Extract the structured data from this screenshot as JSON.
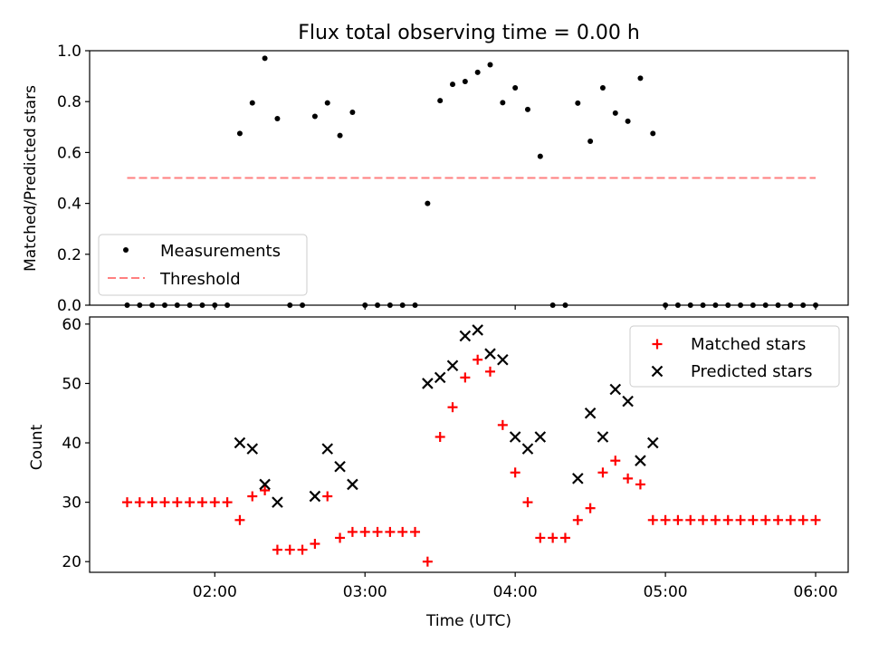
{
  "chart_data": [
    {
      "type": "scatter",
      "title": "Flux total observing time = 0.00 h",
      "xlabel": "",
      "ylabel": "Matched/Predicted stars",
      "xlim": [
        1.1667,
        6.2167
      ],
      "ylim": [
        0.0,
        1.0
      ],
      "yticks": [
        0.0,
        0.2,
        0.4,
        0.6,
        0.8,
        1.0
      ],
      "ytick_labels": [
        "0.0",
        "0.2",
        "0.4",
        "0.6",
        "0.8",
        "1.0"
      ],
      "legend_position": "bottom-left",
      "series": [
        {
          "name": "Measurements",
          "color": "#000000",
          "marker": "dot",
          "x": [
            1.4167,
            1.5,
            1.5833,
            1.6667,
            1.75,
            1.8333,
            1.9167,
            2.0,
            2.0833,
            2.1667,
            2.25,
            2.3333,
            2.4167,
            2.5,
            2.5833,
            2.6667,
            2.75,
            2.8333,
            2.9167,
            3.0,
            3.0833,
            3.1667,
            3.25,
            3.3333,
            3.4167,
            3.5,
            3.5833,
            3.6667,
            3.75,
            3.8333,
            3.9167,
            4.0,
            4.0833,
            4.1667,
            4.25,
            4.3333,
            4.4167,
            4.5,
            4.5833,
            4.6667,
            4.75,
            4.8333,
            4.9167,
            5.0,
            5.0833,
            5.1667,
            5.25,
            5.3333,
            5.4167,
            5.5,
            5.5833,
            5.6667,
            5.75,
            5.8333,
            5.9167,
            6.0
          ],
          "y": [
            0,
            0,
            0,
            0,
            0,
            0,
            0,
            0,
            0,
            0.675,
            0.795,
            0.97,
            0.733,
            0,
            0,
            0.742,
            0.795,
            0.667,
            0.758,
            0,
            0,
            0,
            0,
            0,
            0.4,
            0.804,
            0.868,
            0.879,
            0.915,
            0.945,
            0.796,
            0.854,
            0.769,
            0.585,
            0,
            0,
            0.794,
            0.644,
            0.854,
            0.755,
            0.723,
            0.892,
            0.675,
            0,
            0,
            0,
            0,
            0,
            0,
            0,
            0,
            0,
            0,
            0,
            0,
            0
          ]
        },
        {
          "name": "Threshold",
          "color": "#ff7f7f",
          "style": "dashed",
          "x": [
            1.4167,
            6.0
          ],
          "y": [
            0.5,
            0.5
          ]
        }
      ]
    },
    {
      "type": "scatter",
      "title": "",
      "xlabel": "Time (UTC)",
      "ylabel": "Count",
      "xlim": [
        1.1667,
        6.2167
      ],
      "ylim": [
        18.2,
        61.2
      ],
      "yticks": [
        20,
        30,
        40,
        50,
        60
      ],
      "ytick_labels": [
        "20",
        "30",
        "40",
        "50",
        "60"
      ],
      "xticks": [
        2.0,
        3.0,
        4.0,
        5.0,
        6.0
      ],
      "xtick_labels": [
        "02:00",
        "03:00",
        "04:00",
        "05:00",
        "06:00"
      ],
      "legend_position": "top-right",
      "series": [
        {
          "name": "Matched stars",
          "color": "#ff0000",
          "marker": "plus",
          "x": [
            1.4167,
            1.5,
            1.5833,
            1.6667,
            1.75,
            1.8333,
            1.9167,
            2.0,
            2.0833,
            2.1667,
            2.25,
            2.3333,
            2.4167,
            2.5,
            2.5833,
            2.6667,
            2.75,
            2.8333,
            2.9167,
            3.0,
            3.0833,
            3.1667,
            3.25,
            3.3333,
            3.4167,
            3.5,
            3.5833,
            3.6667,
            3.75,
            3.8333,
            3.9167,
            4.0,
            4.0833,
            4.1667,
            4.25,
            4.3333,
            4.4167,
            4.5,
            4.5833,
            4.6667,
            4.75,
            4.8333,
            4.9167,
            5.0,
            5.0833,
            5.1667,
            5.25,
            5.3333,
            5.4167,
            5.5,
            5.5833,
            5.6667,
            5.75,
            5.8333,
            5.9167,
            6.0
          ],
          "y": [
            30,
            30,
            30,
            30,
            30,
            30,
            30,
            30,
            30,
            27,
            31,
            32,
            22,
            22,
            22,
            23,
            31,
            24,
            25,
            25,
            25,
            25,
            25,
            25,
            20,
            41,
            46,
            51,
            54,
            52,
            43,
            35,
            30,
            24,
            24,
            24,
            27,
            29,
            35,
            37,
            34,
            33,
            27,
            27,
            27,
            27,
            27,
            27,
            27,
            27,
            27,
            27,
            27,
            27,
            27,
            27
          ]
        },
        {
          "name": "Predicted stars",
          "color": "#000000",
          "marker": "x",
          "x": [
            2.1667,
            2.25,
            2.3333,
            2.4167,
            2.6667,
            2.75,
            2.8333,
            2.9167,
            3.4167,
            3.5,
            3.5833,
            3.6667,
            3.75,
            3.8333,
            3.9167,
            4.0,
            4.0833,
            4.1667,
            4.4167,
            4.5,
            4.5833,
            4.6667,
            4.75,
            4.8333,
            4.9167
          ],
          "y": [
            40,
            39,
            33,
            30,
            31,
            39,
            36,
            33,
            50,
            51,
            53,
            58,
            59,
            55,
            54,
            41,
            39,
            41,
            34,
            45,
            41,
            49,
            47,
            37,
            40
          ]
        }
      ]
    }
  ]
}
